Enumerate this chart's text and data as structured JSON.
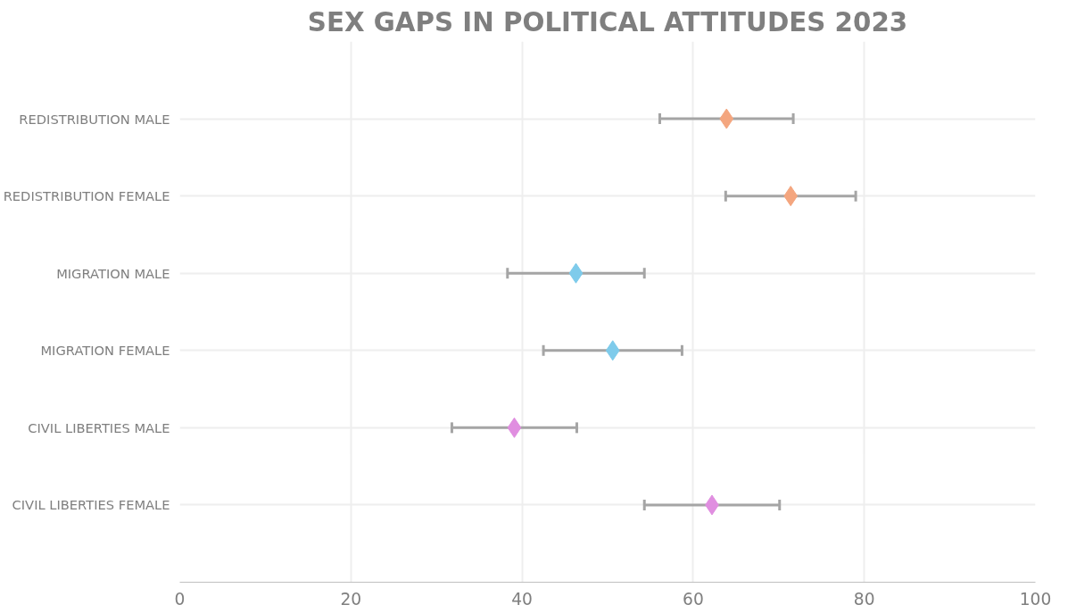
{
  "chart_data": {
    "type": "scatter",
    "title": "SEX GAPS IN POLITICAL ATTITUDES 2023",
    "orientation": "horizontal",
    "categories": [
      "REDISTRIBUTION MALE",
      "REDISTRIBUTION FEMALE",
      "MIGRATION MALE",
      "MIGRATION FEMALE",
      "CIVIL LIBERTIES MALE",
      "CIVIL LIBERTIES FEMALE"
    ],
    "values": [
      63.9,
      71.4,
      46.3,
      50.6,
      39.1,
      62.2
    ],
    "errors": [
      7.8,
      7.6,
      8,
      8.1,
      7.3,
      7.9
    ],
    "colors": [
      "#f4a67f",
      "#f4a67f",
      "#7ecbeb",
      "#7ecbeb",
      "#e08ee0",
      "#e08ee0"
    ],
    "marker": "diamond",
    "grid": true,
    "xlim": [
      0,
      100
    ],
    "xticks": [
      0,
      20,
      40,
      60,
      80,
      100
    ]
  }
}
